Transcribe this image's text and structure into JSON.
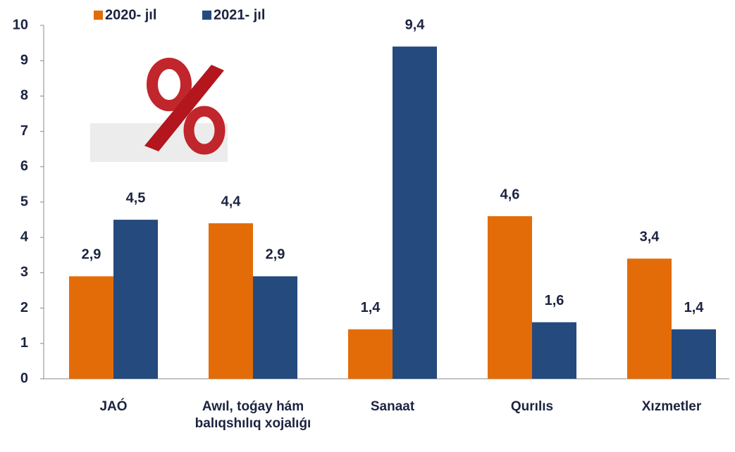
{
  "chart_data": {
    "type": "bar",
    "categories": [
      "JAÓ",
      "Awıl, toǵay hám balıqshılıq xojalıǵı",
      "Sanaat",
      "Qurılıs",
      "Xızmetler"
    ],
    "series": [
      {
        "name": "2020- jıl",
        "color": "#e36c09",
        "values": [
          2.9,
          4.4,
          1.4,
          4.6,
          3.4
        ],
        "value_labels": [
          "2,9",
          "4,4",
          "1,4",
          "4,6",
          "3,4"
        ]
      },
      {
        "name": "2021- jıl",
        "color": "#254a7d",
        "values": [
          4.5,
          2.9,
          9.4,
          1.6,
          1.4
        ],
        "value_labels": [
          "4,5",
          "2,9",
          "9,4",
          "1,6",
          "1,4"
        ]
      }
    ],
    "ylim": [
      0,
      10
    ],
    "yticks": [
      0,
      1,
      2,
      3,
      4,
      5,
      6,
      7,
      8,
      9,
      10
    ],
    "grid": false
  }
}
